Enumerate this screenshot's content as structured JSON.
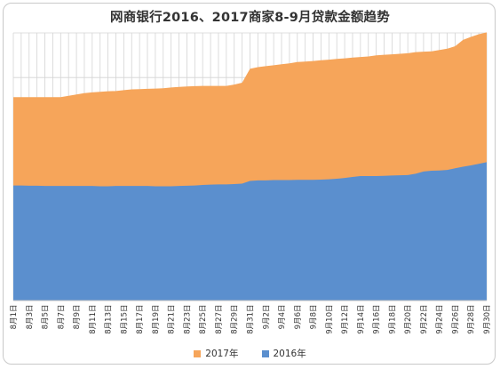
{
  "chart_data": {
    "type": "area",
    "stacked": true,
    "title": "网商银行2016、2017商家8-9月贷款金额趋势",
    "xlabel": "",
    "ylabel": "",
    "grid": {
      "x": true,
      "y": true,
      "y_lines": 6
    },
    "legend_position": "bottom",
    "categories": [
      "8月1日",
      "8月2日",
      "8月3日",
      "8月4日",
      "8月5日",
      "8月6日",
      "8月7日",
      "8月8日",
      "8月9日",
      "8月10日",
      "8月11日",
      "8月12日",
      "8月13日",
      "8月14日",
      "8月15日",
      "8月16日",
      "8月17日",
      "8月18日",
      "8月19日",
      "8月20日",
      "8月21日",
      "8月22日",
      "8月23日",
      "8月24日",
      "8月25日",
      "8月26日",
      "8月27日",
      "8月28日",
      "8月29日",
      "8月30日",
      "8月31日",
      "9月1日",
      "9月2日",
      "9月3日",
      "9月4日",
      "9月5日",
      "9月6日",
      "9月7日",
      "9月8日",
      "9月9日",
      "9月10日",
      "9月11日",
      "9月12日",
      "9月13日",
      "9月14日",
      "9月15日",
      "9月16日",
      "9月17日",
      "9月18日",
      "9月19日",
      "9月20日",
      "9月21日",
      "9月22日",
      "9月23日",
      "9月24日",
      "9月25日",
      "9月26日",
      "9月27日",
      "9月28日",
      "9月29日",
      "9月30日"
    ],
    "tick_labels": [
      "8月1日",
      "8月3日",
      "8月5日",
      "8月7日",
      "8月9日",
      "8月11日",
      "8月13日",
      "8月15日",
      "8月17日",
      "8月19日",
      "8月21日",
      "8月23日",
      "8月25日",
      "8月27日",
      "8月29日",
      "8月31日",
      "9月2日",
      "9月4日",
      "9月6日",
      "9月8日",
      "9月10日",
      "9月12日",
      "9月14日",
      "9月16日",
      "9月18日",
      "9月20日",
      "9月22日",
      "9月24日",
      "9月26日",
      "9月28日",
      "9月30日"
    ],
    "ylim": [
      0,
      100
    ],
    "series": [
      {
        "name": "2016年",
        "color": "#5b8fce",
        "values": [
          43.0,
          43.0,
          42.9,
          42.9,
          42.8,
          42.8,
          42.8,
          42.8,
          42.8,
          42.8,
          42.8,
          42.7,
          42.7,
          42.8,
          42.8,
          42.8,
          42.8,
          42.8,
          42.7,
          42.7,
          42.7,
          42.8,
          42.9,
          43.0,
          43.2,
          43.3,
          43.4,
          43.4,
          43.5,
          43.7,
          44.7,
          44.9,
          44.9,
          45.0,
          45.0,
          45.0,
          45.1,
          45.1,
          45.1,
          45.2,
          45.3,
          45.5,
          45.8,
          46.2,
          46.5,
          46.5,
          46.5,
          46.6,
          46.7,
          46.8,
          46.9,
          47.4,
          48.2,
          48.5,
          48.6,
          48.8,
          49.4,
          50.0,
          50.5,
          51.1,
          51.7
        ]
      },
      {
        "name": "2017年",
        "color": "#f6a55a",
        "values": [
          33.0,
          33.0,
          33.1,
          33.1,
          33.2,
          33.2,
          33.2,
          33.7,
          34.2,
          34.7,
          35.0,
          35.3,
          35.5,
          35.5,
          35.8,
          36.1,
          36.2,
          36.3,
          36.5,
          36.6,
          36.9,
          37.0,
          37.1,
          37.1,
          37.0,
          36.9,
          36.8,
          36.8,
          37.2,
          37.7,
          41.9,
          42.3,
          42.7,
          42.9,
          43.3,
          43.6,
          44.0,
          44.2,
          44.4,
          44.6,
          44.7,
          44.8,
          44.7,
          44.6,
          44.5,
          44.7,
          45.1,
          45.2,
          45.3,
          45.4,
          45.5,
          45.4,
          44.8,
          44.6,
          45.0,
          45.3,
          45.6,
          47.4,
          48.0,
          48.4,
          48.5
        ]
      }
    ]
  }
}
